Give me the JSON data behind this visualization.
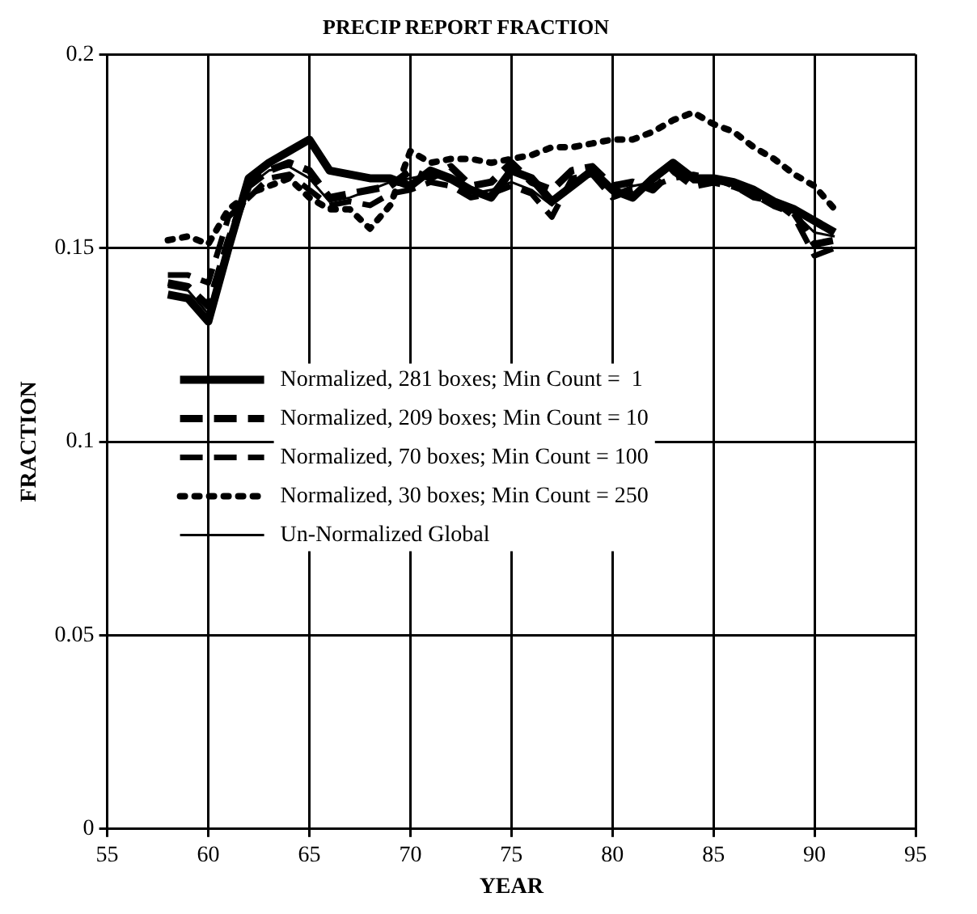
{
  "chart_data": {
    "type": "line",
    "title": "PRECIP REPORT FRACTION",
    "xlabel": "YEAR",
    "ylabel": "FRACTION",
    "x": [
      58,
      59,
      60,
      61,
      62,
      63,
      64,
      65,
      66,
      67,
      68,
      69,
      70,
      71,
      72,
      73,
      74,
      75,
      76,
      77,
      78,
      79,
      80,
      81,
      82,
      83,
      84,
      85,
      86,
      87,
      88,
      89,
      90,
      91
    ],
    "series": [
      {
        "name": "Normalized, 281 boxes; Min Count =  1",
        "color": "#000000",
        "line_style": "solid",
        "values": [
          0.138,
          0.137,
          0.131,
          0.15,
          0.168,
          0.172,
          0.175,
          0.178,
          0.17,
          0.169,
          0.168,
          0.168,
          0.166,
          0.17,
          0.168,
          0.165,
          0.163,
          0.17,
          0.168,
          0.162,
          0.166,
          0.17,
          0.165,
          0.163,
          0.168,
          0.172,
          0.168,
          0.168,
          0.167,
          0.165,
          0.162,
          0.16,
          0.157,
          0.154
        ]
      },
      {
        "name": "Normalized, 209 boxes; Min Count = 10",
        "color": "#000000",
        "line_style": "dashed",
        "values": [
          0.141,
          0.14,
          0.135,
          0.152,
          0.166,
          0.17,
          0.172,
          0.17,
          0.163,
          0.164,
          0.165,
          0.166,
          0.17,
          0.168,
          0.171,
          0.166,
          0.167,
          0.172,
          0.167,
          0.165,
          0.17,
          0.171,
          0.166,
          0.167,
          0.165,
          0.17,
          0.166,
          0.167,
          0.166,
          0.164,
          0.161,
          0.159,
          0.151,
          0.152
        ]
      },
      {
        "name": "Normalized, 70 boxes; Min Count = 100",
        "color": "#000000",
        "line_style": "dashed",
        "values": [
          0.143,
          0.143,
          0.141,
          0.158,
          0.163,
          0.168,
          0.169,
          0.165,
          0.161,
          0.162,
          0.161,
          0.164,
          0.165,
          0.167,
          0.166,
          0.163,
          0.164,
          0.166,
          0.164,
          0.158,
          0.168,
          0.169,
          0.163,
          0.165,
          0.166,
          0.168,
          0.169,
          0.168,
          0.166,
          0.163,
          0.162,
          0.158,
          0.148,
          0.15
        ]
      },
      {
        "name": "Normalized, 30 boxes; Min Count = 250",
        "color": "#000000",
        "line_style": "dotted",
        "values": [
          0.152,
          0.153,
          0.151,
          0.16,
          0.164,
          0.166,
          0.168,
          0.163,
          0.16,
          0.16,
          0.155,
          0.161,
          0.175,
          0.172,
          0.173,
          0.173,
          0.172,
          0.173,
          0.174,
          0.176,
          0.176,
          0.177,
          0.178,
          0.178,
          0.18,
          0.183,
          0.185,
          0.182,
          0.18,
          0.176,
          0.173,
          0.169,
          0.166,
          0.16
        ]
      },
      {
        "name": "Un-Normalized Global",
        "color": "#000000",
        "line_style": "solid",
        "values": [
          0.14,
          0.139,
          0.133,
          0.152,
          0.166,
          0.17,
          0.171,
          0.168,
          0.162,
          0.163,
          0.165,
          0.167,
          0.168,
          0.169,
          0.167,
          0.164,
          0.165,
          0.167,
          0.165,
          0.161,
          0.167,
          0.17,
          0.164,
          0.166,
          0.167,
          0.171,
          0.167,
          0.167,
          0.166,
          0.164,
          0.161,
          0.159,
          0.154,
          0.153
        ]
      }
    ],
    "xlim": [
      55,
      95
    ],
    "xticks": [
      55,
      60,
      65,
      70,
      75,
      80,
      85,
      90,
      95
    ],
    "ylim": [
      0,
      0.2
    ],
    "yticks": [
      0,
      0.05,
      0.1,
      0.15,
      0.2
    ],
    "grid": true,
    "legend": "left",
    "marker": "none"
  }
}
